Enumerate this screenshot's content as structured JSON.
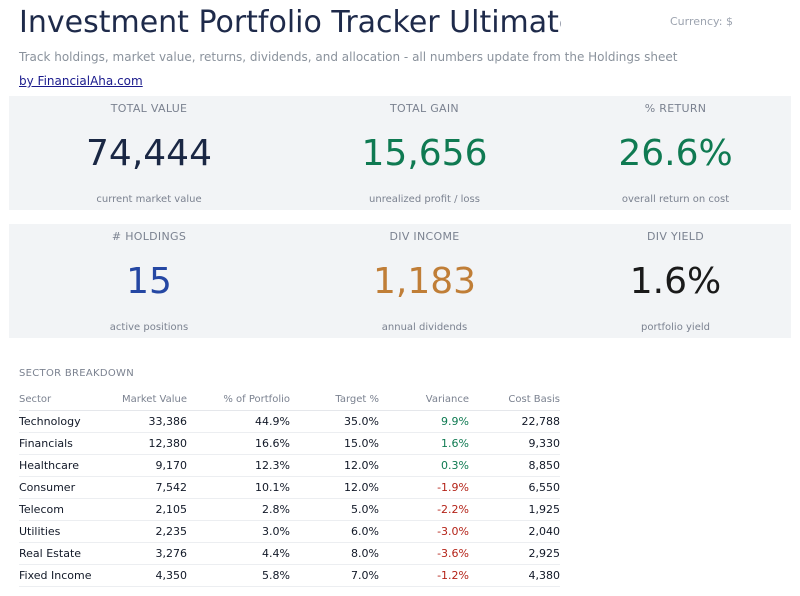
{
  "header": {
    "title": "Investment Portfolio Tracker Ultimate",
    "currency_label": "Currency: $",
    "subtitle": "Track holdings, market value, returns, dividends, and allocation - all numbers update from the Holdings sheet",
    "byline": "by FinancialAha.com"
  },
  "kpis_row1": [
    {
      "label": "TOTAL VALUE",
      "value": "74,444",
      "desc": "current market value"
    },
    {
      "label": "TOTAL GAIN",
      "value": "15,656",
      "desc": "unrealized profit / loss"
    },
    {
      "label": "% RETURN",
      "value": "26.6%",
      "desc": "overall return on cost"
    }
  ],
  "kpis_row2": [
    {
      "label": "# HOLDINGS",
      "value": "15",
      "desc": "active positions"
    },
    {
      "label": "DIV INCOME",
      "value": "1,183",
      "desc": "annual dividends"
    },
    {
      "label": "DIV YIELD",
      "value": "1.6%",
      "desc": "portfolio yield"
    }
  ],
  "colors": {
    "navy": "#1a2744",
    "green": "#0f7a52",
    "blue": "#2547a3",
    "gold": "#c07e37",
    "red": "#b42318",
    "card_bg": "#f2f4f6"
  },
  "sector_breakdown": {
    "title": "SECTOR BREAKDOWN",
    "columns": [
      "Sector",
      "Market Value",
      "% of Portfolio",
      "Target %",
      "Variance",
      "Cost Basis"
    ],
    "rows": [
      [
        "Technology",
        "33,386",
        "44.9%",
        "35.0%",
        "9.9%",
        "22,788"
      ],
      [
        "Financials",
        "12,380",
        "16.6%",
        "15.0%",
        "1.6%",
        "9,330"
      ],
      [
        "Healthcare",
        "9,170",
        "12.3%",
        "12.0%",
        "0.3%",
        "8,850"
      ],
      [
        "Consumer",
        "7,542",
        "10.1%",
        "12.0%",
        "-1.9%",
        "6,550"
      ],
      [
        "Telecom",
        "2,105",
        "2.8%",
        "5.0%",
        "-2.2%",
        "1,925"
      ],
      [
        "Utilities",
        "2,235",
        "3.0%",
        "6.0%",
        "-3.0%",
        "2,040"
      ],
      [
        "Real Estate",
        "3,276",
        "4.4%",
        "8.0%",
        "-3.6%",
        "2,925"
      ],
      [
        "Fixed Income",
        "4,350",
        "5.8%",
        "7.0%",
        "-1.2%",
        "4,380"
      ]
    ]
  }
}
